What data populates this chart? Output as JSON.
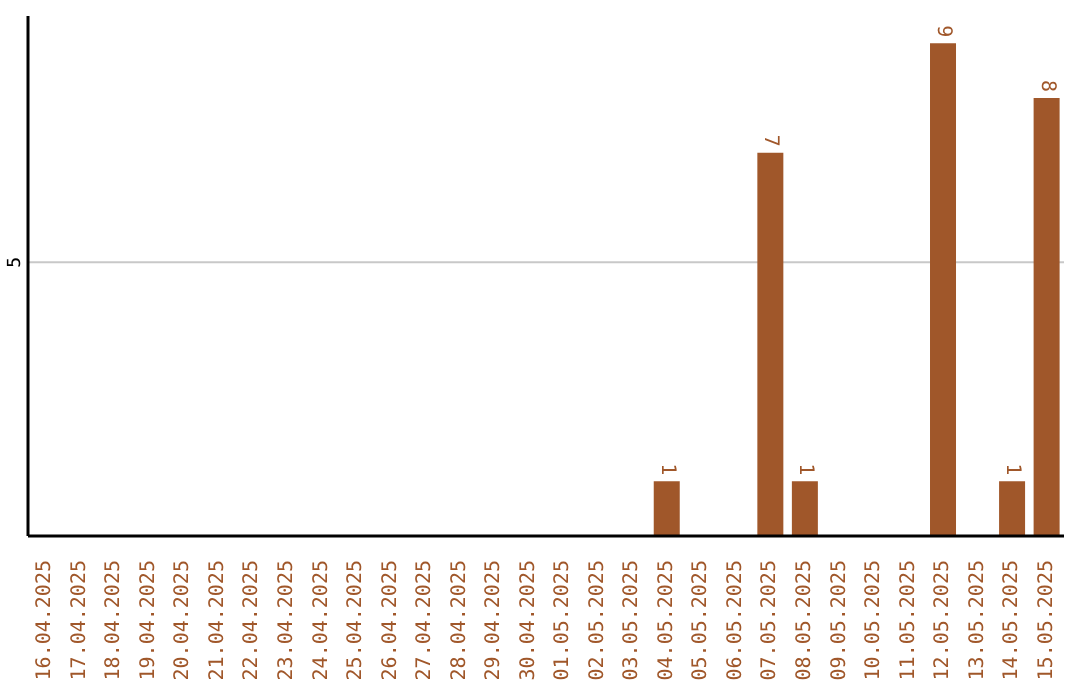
{
  "chart_data": {
    "type": "bar",
    "categories": [
      "16.04.2025",
      "17.04.2025",
      "18.04.2025",
      "19.04.2025",
      "20.04.2025",
      "21.04.2025",
      "22.04.2025",
      "23.04.2025",
      "24.04.2025",
      "25.04.2025",
      "26.04.2025",
      "27.04.2025",
      "28.04.2025",
      "29.04.2025",
      "30.04.2025",
      "01.05.2025",
      "02.05.2025",
      "03.05.2025",
      "04.05.2025",
      "05.05.2025",
      "06.05.2025",
      "07.05.2025",
      "08.05.2025",
      "09.05.2025",
      "10.05.2025",
      "11.05.2025",
      "12.05.2025",
      "13.05.2025",
      "14.05.2025",
      "15.05.2025"
    ],
    "values": [
      null,
      null,
      null,
      null,
      null,
      null,
      null,
      null,
      null,
      null,
      null,
      null,
      null,
      null,
      null,
      null,
      null,
      null,
      1,
      null,
      null,
      7,
      1,
      null,
      null,
      null,
      9,
      null,
      1,
      8
    ],
    "color": "#a0572a",
    "ylim": [
      0,
      9.5
    ],
    "yticks": [
      5
    ],
    "grid": "y",
    "data_labels": true
  }
}
